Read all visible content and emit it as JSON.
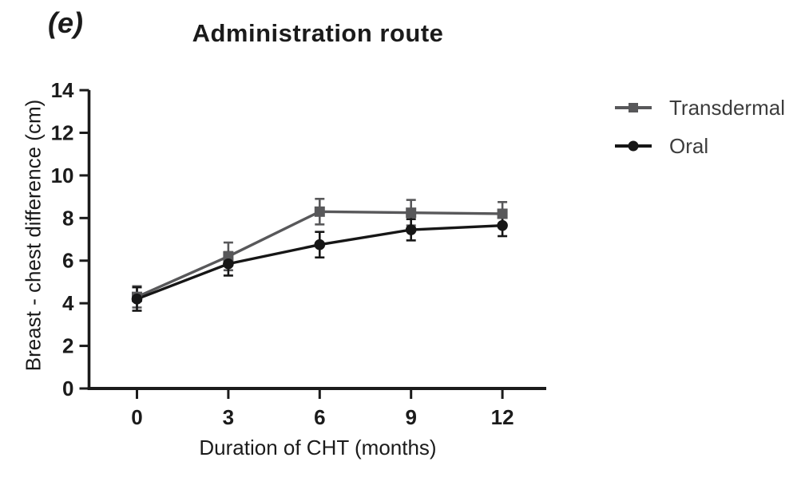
{
  "figure": {
    "panel_label": "(e)",
    "title": "Administration route"
  },
  "chart_data": {
    "type": "line",
    "title": "Administration route",
    "xlabel": "Duration of CHT (months)",
    "ylabel": "Breast - chest difference (cm)",
    "x": [
      0,
      3,
      6,
      9,
      12
    ],
    "xlim": [
      -1.5,
      13.5
    ],
    "ylim": [
      0,
      14
    ],
    "yticks": [
      0,
      2,
      4,
      6,
      8,
      10,
      12,
      14
    ],
    "grid": false,
    "error_bars": true,
    "legend_position": "right-outside",
    "axis_color": "#1b1b1b",
    "series": [
      {
        "name": "Transdermal",
        "marker": "square",
        "color": "#58585a",
        "values": [
          4.3,
          6.2,
          8.3,
          8.25,
          8.2
        ],
        "errors": [
          0.5,
          0.65,
          0.6,
          0.6,
          0.55
        ]
      },
      {
        "name": "Oral",
        "marker": "circle",
        "color": "#161616",
        "values": [
          4.2,
          5.85,
          6.75,
          7.45,
          7.65
        ],
        "errors": [
          0.55,
          0.55,
          0.6,
          0.5,
          0.5
        ]
      }
    ]
  }
}
